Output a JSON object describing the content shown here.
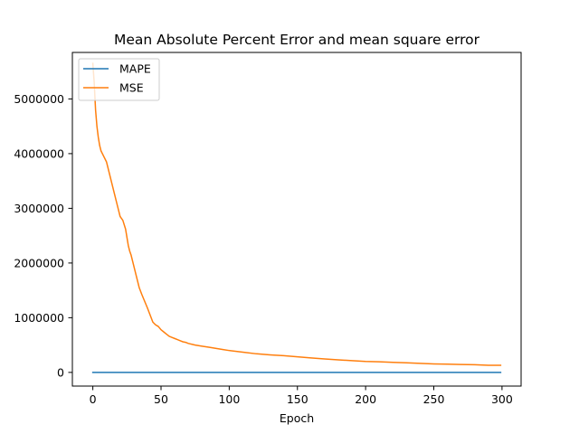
{
  "chart_data": {
    "type": "line",
    "title": "Mean Absolute Percent Error and mean square error",
    "xlabel": "Epoch",
    "ylabel": "",
    "xlim": [
      -15,
      314
    ],
    "ylim": [
      -250000,
      5850000
    ],
    "xticks": [
      0,
      50,
      100,
      150,
      200,
      250,
      300
    ],
    "yticks": [
      0,
      1000000,
      2000000,
      3000000,
      4000000,
      5000000
    ],
    "xtick_labels": [
      "0",
      "50",
      "100",
      "150",
      "200",
      "250",
      "300"
    ],
    "ytick_labels": [
      "0",
      "1000000",
      "2000000",
      "3000000",
      "4000000",
      "5000000"
    ],
    "grid": false,
    "legend_position": "upper left",
    "series": [
      {
        "name": "MAPE",
        "color": "#1f77b4",
        "x": [
          0,
          299
        ],
        "y": [
          0,
          0
        ]
      },
      {
        "name": "MSE",
        "color": "#ff7f0e",
        "x": [
          0,
          1,
          2,
          3,
          4,
          5,
          6,
          8,
          10,
          12,
          14,
          16,
          18,
          20,
          22,
          24,
          26,
          27,
          28,
          30,
          32,
          34,
          36,
          38,
          40,
          42,
          44,
          46,
          48,
          50,
          52,
          54,
          56,
          58,
          60,
          62,
          64,
          66,
          68,
          70,
          75,
          80,
          85,
          90,
          95,
          100,
          110,
          120,
          130,
          140,
          150,
          160,
          170,
          180,
          190,
          200,
          210,
          220,
          230,
          240,
          250,
          260,
          270,
          280,
          290,
          299
        ],
        "y": [
          5650000,
          5300000,
          4800000,
          4500000,
          4300000,
          4150000,
          4050000,
          3950000,
          3850000,
          3650000,
          3450000,
          3250000,
          3050000,
          2850000,
          2780000,
          2620000,
          2320000,
          2220000,
          2150000,
          1950000,
          1750000,
          1550000,
          1420000,
          1300000,
          1180000,
          1050000,
          920000,
          870000,
          840000,
          780000,
          740000,
          700000,
          660000,
          640000,
          620000,
          600000,
          580000,
          560000,
          550000,
          530000,
          500000,
          480000,
          460000,
          440000,
          420000,
          400000,
          370000,
          340000,
          320000,
          305000,
          285000,
          265000,
          245000,
          230000,
          215000,
          200000,
          195000,
          185000,
          175000,
          165000,
          155000,
          150000,
          145000,
          140000,
          130000,
          130000
        ]
      }
    ]
  }
}
